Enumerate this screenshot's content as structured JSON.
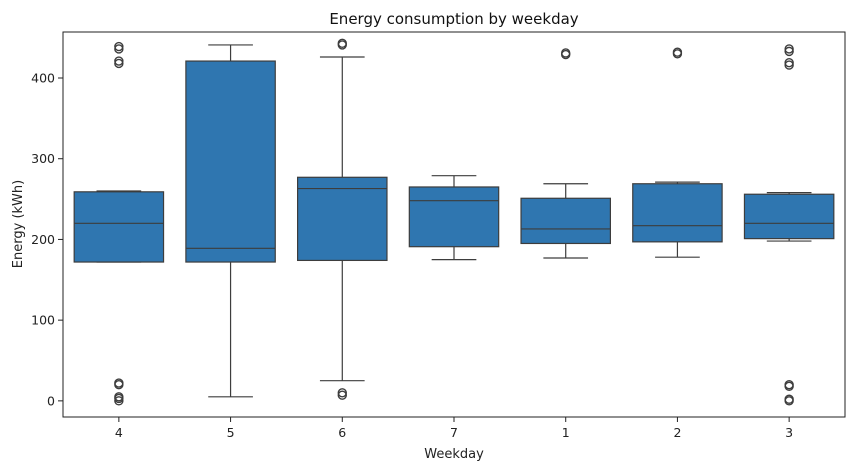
{
  "chart_data": {
    "type": "box",
    "title": "Energy consumption by weekday",
    "xlabel": "Weekday",
    "ylabel": "Energy (kWh)",
    "ylim": [
      -20,
      457
    ],
    "yticks": [
      0,
      100,
      200,
      300,
      400
    ],
    "grid": false,
    "color": "#2f76b0",
    "categories": [
      "4",
      "5",
      "6",
      "7",
      "1",
      "2",
      "3"
    ],
    "boxes": [
      {
        "category": "4",
        "whisker_low": 172,
        "q1": 172,
        "median": 220,
        "q3": 259,
        "whisker_high": 260,
        "outliers": [
          0,
          3,
          5,
          20,
          22,
          418,
          421,
          436,
          439
        ]
      },
      {
        "category": "5",
        "whisker_low": 5,
        "q1": 172,
        "median": 189,
        "q3": 421,
        "whisker_high": 441,
        "outliers": []
      },
      {
        "category": "6",
        "whisker_low": 25,
        "q1": 174,
        "median": 263,
        "q3": 277,
        "whisker_high": 426,
        "outliers": [
          7,
          10,
          441,
          443
        ]
      },
      {
        "category": "7",
        "whisker_low": 175,
        "q1": 191,
        "median": 248,
        "q3": 265,
        "whisker_high": 279,
        "outliers": []
      },
      {
        "category": "1",
        "whisker_low": 177,
        "q1": 195,
        "median": 213,
        "q3": 251,
        "whisker_high": 269,
        "outliers": [
          429,
          431
        ]
      },
      {
        "category": "2",
        "whisker_low": 178,
        "q1": 197,
        "median": 217,
        "q3": 269,
        "whisker_high": 271,
        "outliers": [
          430,
          432
        ]
      },
      {
        "category": "3",
        "whisker_low": 198,
        "q1": 201,
        "median": 220,
        "q3": 256,
        "whisker_high": 258,
        "outliers": [
          0,
          2,
          18,
          20,
          416,
          419,
          433,
          436
        ]
      }
    ]
  }
}
